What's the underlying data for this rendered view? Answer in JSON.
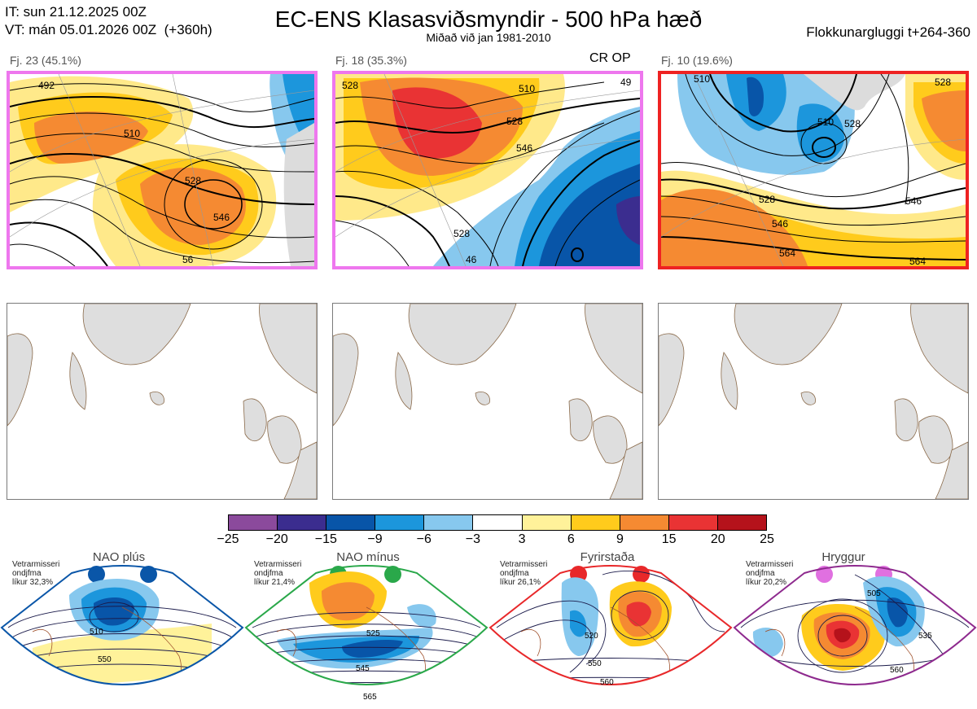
{
  "header": {
    "it_line": "IT: sun 21.12.2025 00Z",
    "vt_line": "VT: mán 05.01.2026 00Z  (+360h)",
    "title": "EC-ENS Klasasviðsmyndir - 500 hPa hæð",
    "subtitle": "Miðað við jan 1981-2010",
    "window": "Flokkunargluggi t+264-360"
  },
  "clusters": [
    {
      "label": "Fj. 23 (45.1%)",
      "frame_color": "#ee77ee",
      "contours": [
        "492",
        "510",
        "528",
        "546",
        "56"
      ]
    },
    {
      "label": "Fj. 18 (35.3%)",
      "frame_color": "#ee77ee",
      "contours": [
        "528",
        "510",
        "528",
        "546",
        "528",
        "46",
        "49"
      ],
      "extra": "CR OP"
    },
    {
      "label": "Fj. 10 (19.6%)",
      "frame_color": "#ee2222",
      "contours": [
        "510",
        "510",
        "528",
        "528",
        "546",
        "546",
        "564",
        "564",
        "528"
      ]
    }
  ],
  "colorbar": {
    "colors": [
      "#8b4a9c",
      "#3b2d8f",
      "#0855a8",
      "#1c96dc",
      "#87c8ee",
      "#ffffff",
      "#fff29a",
      "#ffcb1c",
      "#f58a32",
      "#e93334",
      "#b5121b"
    ],
    "ticks": [
      "−25",
      "−20",
      "−15",
      "−9",
      "−6",
      "−3",
      "3",
      "6",
      "9",
      "15",
      "20",
      "25"
    ]
  },
  "regimes": [
    {
      "name": "NAO plús",
      "note": [
        "Vetrarmisseri",
        "ondjfma",
        "líkur 32,3%"
      ],
      "color": "#0a56a8",
      "contours": [
        "510",
        "550"
      ]
    },
    {
      "name": "NAO mínus",
      "note": [
        "Vetrarmisseri",
        "ondjfma",
        "líkur 21,4%"
      ],
      "color": "#2aa84a",
      "contours": [
        "525",
        "545",
        "565"
      ]
    },
    {
      "name": "Fyrirstaða",
      "note": [
        "Vetrarmisseri",
        "ondjfma",
        "líkur 26,1%"
      ],
      "color": "#e8282a",
      "contours": [
        "520",
        "550",
        "560"
      ]
    },
    {
      "name": "Hryggur",
      "note": [
        "Vetrarmisseri",
        "ondjfma",
        "líkur 20,2%"
      ],
      "color": "#e070e0",
      "contours": [
        "505",
        "535",
        "560"
      ]
    }
  ]
}
